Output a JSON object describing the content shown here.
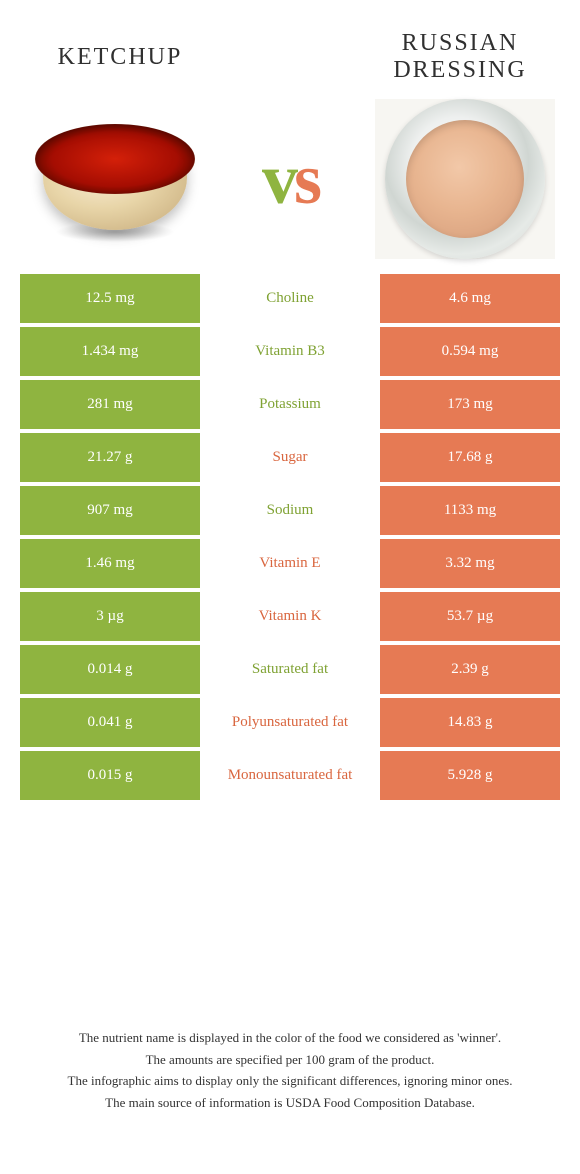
{
  "colors": {
    "left": "#8fb440",
    "right": "#e67a54",
    "left_text": "#7fa233",
    "right_text": "#d9663f"
  },
  "header": {
    "left_title": "Ketchup",
    "right_title": "Russian dressing",
    "vs": "vs"
  },
  "rows": [
    {
      "label": "Choline",
      "left": "12.5 mg",
      "right": "4.6 mg",
      "winner": "left"
    },
    {
      "label": "Vitamin B3",
      "left": "1.434 mg",
      "right": "0.594 mg",
      "winner": "left"
    },
    {
      "label": "Potassium",
      "left": "281 mg",
      "right": "173 mg",
      "winner": "left"
    },
    {
      "label": "Sugar",
      "left": "21.27 g",
      "right": "17.68 g",
      "winner": "right"
    },
    {
      "label": "Sodium",
      "left": "907 mg",
      "right": "1133 mg",
      "winner": "left"
    },
    {
      "label": "Vitamin E",
      "left": "1.46 mg",
      "right": "3.32 mg",
      "winner": "right"
    },
    {
      "label": "Vitamin K",
      "left": "3 µg",
      "right": "53.7 µg",
      "winner": "right"
    },
    {
      "label": "Saturated fat",
      "left": "0.014 g",
      "right": "2.39 g",
      "winner": "left"
    },
    {
      "label": "Polyunsaturated fat",
      "left": "0.041 g",
      "right": "14.83 g",
      "winner": "right"
    },
    {
      "label": "Monounsaturated fat",
      "left": "0.015 g",
      "right": "5.928 g",
      "winner": "right"
    }
  ],
  "footnotes": [
    "The nutrient name is displayed in the color of the food we considered as 'winner'.",
    "The amounts are specified per 100 gram of the product.",
    "The infographic aims to display only the significant differences, ignoring minor ones.",
    "The main source of information is USDA Food Composition Database."
  ]
}
